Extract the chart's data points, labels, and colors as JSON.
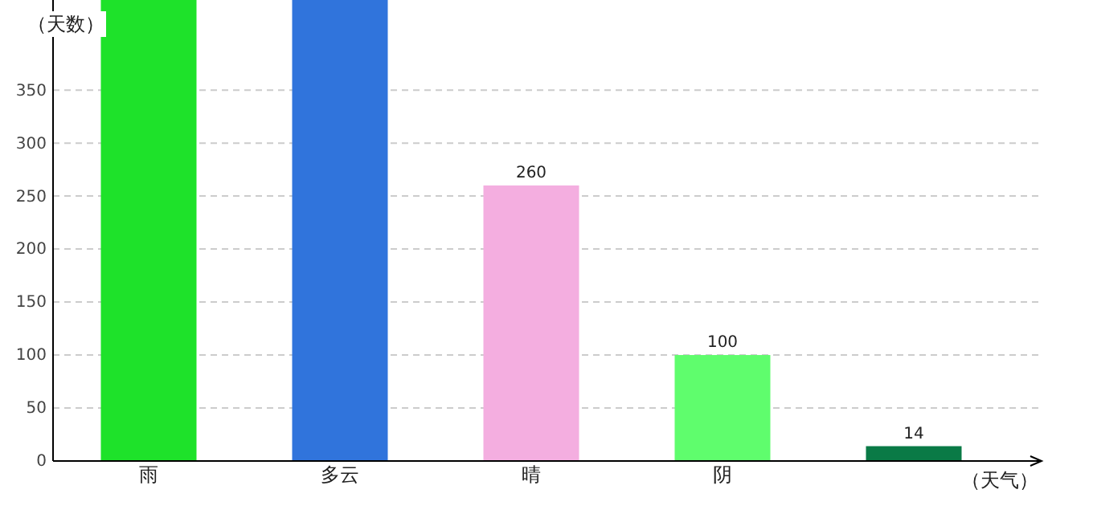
{
  "chart_data": {
    "type": "bar",
    "xlabel": "（天气）",
    "ylabel": "（天数）",
    "categories": [
      "雨",
      "多云",
      "晴",
      "阴",
      null
    ],
    "values": [
      435,
      435,
      260,
      100,
      14
    ],
    "colors": [
      "#1ee22a",
      "#3074dc",
      "#f4aee0",
      "#5ffd6d",
      "#0a7a46"
    ],
    "value_labels": [
      null,
      null,
      "260",
      "100",
      "14"
    ],
    "ylim": [
      0,
      435
    ],
    "yticks": [
      0,
      50,
      100,
      150,
      200,
      250,
      300,
      350
    ],
    "grid": "y"
  }
}
